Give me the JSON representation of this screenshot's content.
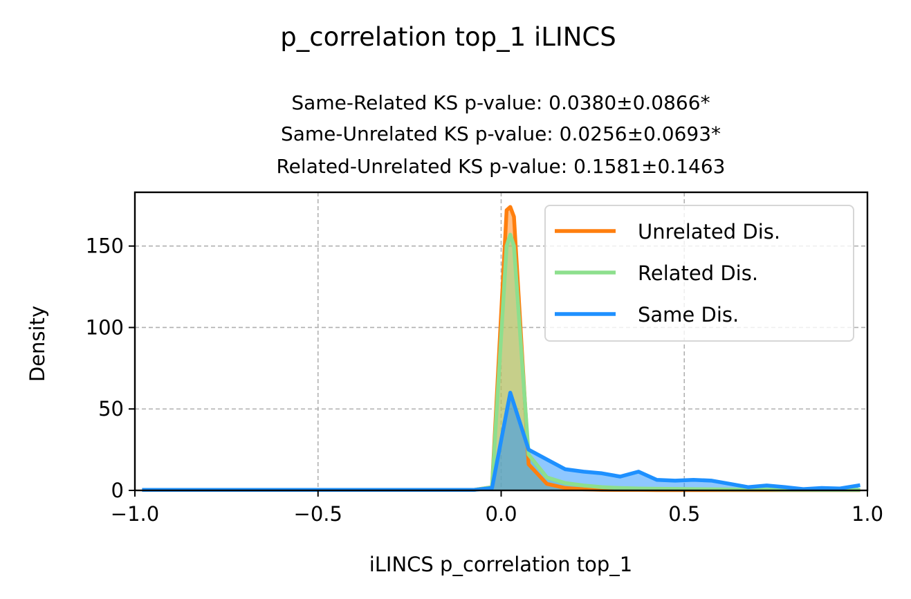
{
  "chart_data": {
    "type": "area",
    "title": "p_correlation top_1 iLINCS",
    "subtitle_lines": [
      "Same-Related KS p-value: 0.0380±0.0866*",
      "Same-Unrelated KS p-value: 0.0256±0.0693*",
      "Related-Unrelated KS p-value: 0.1581±0.1463"
    ],
    "xlabel": "iLINCS p_correlation top_1",
    "ylabel": "Density",
    "xlim": [
      -1.0,
      1.0
    ],
    "ylim": [
      0,
      183
    ],
    "xticks": [
      -1.0,
      -0.5,
      0.0,
      0.5,
      1.0
    ],
    "xtick_labels": [
      "−1.0",
      "−0.5",
      "0.0",
      "0.5",
      "1.0"
    ],
    "yticks": [
      0,
      50,
      100,
      150
    ],
    "ytick_labels": [
      "0",
      "50",
      "100",
      "150"
    ],
    "grid": true,
    "legend_position": "upper-right",
    "series": [
      {
        "name": "Unrelated Dis.",
        "color": "#ff7f0e",
        "fill": "#ff7f0e",
        "x": [
          -0.975,
          -0.075,
          -0.025,
          0.015,
          0.025,
          0.035,
          0.075,
          0.125,
          0.175,
          0.225,
          0.275,
          0.325,
          0.375,
          0.425,
          0.475,
          0.525,
          0.575,
          0.625,
          0.675,
          0.725,
          0.775,
          0.825,
          0.875,
          0.925,
          0.975
        ],
        "values": [
          0.3,
          0.3,
          2,
          172,
          174,
          168,
          16,
          4,
          1.5,
          0.7,
          0.4,
          0.3,
          0.3,
          0.2,
          0.2,
          0.2,
          0.2,
          0.2,
          0.2,
          0.2,
          0.2,
          0.2,
          0.2,
          0.2,
          0.2
        ]
      },
      {
        "name": "Related Dis.",
        "color": "#8ddf8d",
        "fill": "#8ddf8d",
        "x": [
          -0.975,
          -0.075,
          -0.025,
          0.015,
          0.025,
          0.035,
          0.075,
          0.125,
          0.175,
          0.225,
          0.275,
          0.325,
          0.375,
          0.425,
          0.475,
          0.525,
          0.575,
          0.625,
          0.675,
          0.725,
          0.775,
          0.825,
          0.875,
          0.925,
          0.975
        ],
        "values": [
          0.3,
          0.3,
          2,
          150,
          157,
          150,
          22,
          8,
          4.5,
          3,
          2,
          1.5,
          1.2,
          1,
          0.9,
          0.8,
          0.7,
          0.6,
          0.5,
          0.5,
          0.4,
          0.4,
          0.3,
          0.3,
          0.3
        ]
      },
      {
        "name": "Same Dis.",
        "color": "#1e90ff",
        "fill": "#1e90ff",
        "x": [
          -0.975,
          -0.075,
          -0.025,
          0.025,
          0.075,
          0.125,
          0.175,
          0.225,
          0.275,
          0.325,
          0.375,
          0.425,
          0.475,
          0.525,
          0.575,
          0.625,
          0.675,
          0.725,
          0.775,
          0.825,
          0.875,
          0.925,
          0.975
        ],
        "values": [
          0.3,
          0.3,
          1.5,
          60,
          25,
          19,
          13,
          11.5,
          10.5,
          8.5,
          11.5,
          6.5,
          6,
          6.5,
          6,
          4,
          2,
          3,
          2,
          0.8,
          1.5,
          1.2,
          3
        ]
      }
    ]
  }
}
